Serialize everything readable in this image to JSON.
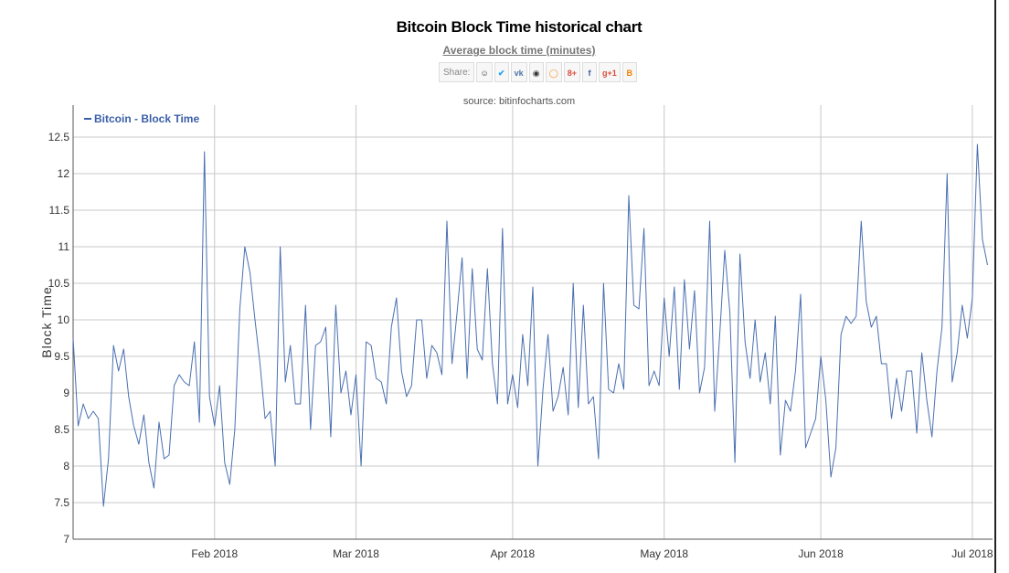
{
  "header": {
    "title": "Bitcoin Block Time historical chart",
    "subtitle": "Average block time (minutes)",
    "source": "source: bitinfocharts.com",
    "share_label": "Share:",
    "share_icons": [
      "reddit-icon",
      "twitter-icon",
      "vk-icon",
      "weibo-icon",
      "odnoklassniki-icon",
      "google-plus-icon",
      "facebook-icon",
      "google-plus-one-icon",
      "blogger-icon"
    ]
  },
  "colors": {
    "line": "#4a6fb0",
    "grid": "#c8c8c8",
    "axis": "#555555",
    "legend": "#3a5fa8"
  },
  "chart_data": {
    "type": "line",
    "title": "Bitcoin Block Time historical chart",
    "subtitle": "Average block time (minutes)",
    "ylabel": "Block Time",
    "xlabel": "",
    "ylim": [
      7,
      12.5
    ],
    "yticks": [
      "7",
      "7.5",
      "8",
      "8.5",
      "9",
      "9.5",
      "10",
      "10.5",
      "11",
      "11.5",
      "12",
      "12.5"
    ],
    "x_range": [
      "2018-01-04",
      "2018-07-05"
    ],
    "xticks": [
      {
        "label": "Feb 2018",
        "date": "2018-02-01"
      },
      {
        "label": "Mar 2018",
        "date": "2018-03-01"
      },
      {
        "label": "Apr 2018",
        "date": "2018-04-01"
      },
      {
        "label": "May 2018",
        "date": "2018-05-01"
      },
      {
        "label": "Jun 2018",
        "date": "2018-06-01"
      },
      {
        "label": "Jul 2018",
        "date": "2018-07-01"
      }
    ],
    "grid": true,
    "legend": "top-left",
    "series": [
      {
        "name": "Bitcoin - Block Time",
        "points": [
          [
            "2018-01-04",
            9.75
          ],
          [
            "2018-01-05",
            8.55
          ],
          [
            "2018-01-06",
            8.85
          ],
          [
            "2018-01-07",
            8.65
          ],
          [
            "2018-01-08",
            8.75
          ],
          [
            "2018-01-09",
            8.65
          ],
          [
            "2018-01-10",
            7.45
          ],
          [
            "2018-01-11",
            8.1
          ],
          [
            "2018-01-12",
            9.65
          ],
          [
            "2018-01-13",
            9.3
          ],
          [
            "2018-01-14",
            9.6
          ],
          [
            "2018-01-15",
            8.95
          ],
          [
            "2018-01-16",
            8.55
          ],
          [
            "2018-01-17",
            8.3
          ],
          [
            "2018-01-18",
            8.7
          ],
          [
            "2018-01-19",
            8.05
          ],
          [
            "2018-01-20",
            7.7
          ],
          [
            "2018-01-21",
            8.6
          ],
          [
            "2018-01-22",
            8.1
          ],
          [
            "2018-01-23",
            8.15
          ],
          [
            "2018-01-24",
            9.1
          ],
          [
            "2018-01-25",
            9.25
          ],
          [
            "2018-01-26",
            9.15
          ],
          [
            "2018-01-27",
            9.1
          ],
          [
            "2018-01-28",
            9.7
          ],
          [
            "2018-01-29",
            8.6
          ],
          [
            "2018-01-30",
            12.3
          ],
          [
            "2018-01-31",
            8.95
          ],
          [
            "2018-02-01",
            8.55
          ],
          [
            "2018-02-02",
            9.1
          ],
          [
            "2018-02-03",
            8.05
          ],
          [
            "2018-02-04",
            7.75
          ],
          [
            "2018-02-05",
            8.5
          ],
          [
            "2018-02-06",
            10.15
          ],
          [
            "2018-02-07",
            11.0
          ],
          [
            "2018-02-08",
            10.65
          ],
          [
            "2018-02-09",
            10.0
          ],
          [
            "2018-02-10",
            9.4
          ],
          [
            "2018-02-11",
            8.65
          ],
          [
            "2018-02-12",
            8.75
          ],
          [
            "2018-02-13",
            8.0
          ],
          [
            "2018-02-14",
            11.0
          ],
          [
            "2018-02-15",
            9.15
          ],
          [
            "2018-02-16",
            9.65
          ],
          [
            "2018-02-17",
            8.85
          ],
          [
            "2018-02-18",
            8.85
          ],
          [
            "2018-02-19",
            10.2
          ],
          [
            "2018-02-20",
            8.5
          ],
          [
            "2018-02-21",
            9.65
          ],
          [
            "2018-02-22",
            9.7
          ],
          [
            "2018-02-23",
            9.9
          ],
          [
            "2018-02-24",
            8.4
          ],
          [
            "2018-02-25",
            10.2
          ],
          [
            "2018-02-26",
            9.0
          ],
          [
            "2018-02-27",
            9.3
          ],
          [
            "2018-02-28",
            8.7
          ],
          [
            "2018-03-01",
            9.25
          ],
          [
            "2018-03-02",
            8.0
          ],
          [
            "2018-03-03",
            9.7
          ],
          [
            "2018-03-04",
            9.65
          ],
          [
            "2018-03-05",
            9.2
          ],
          [
            "2018-03-06",
            9.15
          ],
          [
            "2018-03-07",
            8.85
          ],
          [
            "2018-03-08",
            9.9
          ],
          [
            "2018-03-09",
            10.3
          ],
          [
            "2018-03-10",
            9.3
          ],
          [
            "2018-03-11",
            8.95
          ],
          [
            "2018-03-12",
            9.1
          ],
          [
            "2018-03-13",
            10.0
          ],
          [
            "2018-03-14",
            10.0
          ],
          [
            "2018-03-15",
            9.2
          ],
          [
            "2018-03-16",
            9.65
          ],
          [
            "2018-03-17",
            9.55
          ],
          [
            "2018-03-18",
            9.25
          ],
          [
            "2018-03-19",
            11.35
          ],
          [
            "2018-03-20",
            9.4
          ],
          [
            "2018-03-21",
            10.1
          ],
          [
            "2018-03-22",
            10.85
          ],
          [
            "2018-03-23",
            9.2
          ],
          [
            "2018-03-24",
            10.7
          ],
          [
            "2018-03-25",
            9.6
          ],
          [
            "2018-03-26",
            9.45
          ],
          [
            "2018-03-27",
            10.7
          ],
          [
            "2018-03-28",
            9.4
          ],
          [
            "2018-03-29",
            8.85
          ],
          [
            "2018-03-30",
            11.25
          ],
          [
            "2018-03-31",
            8.85
          ],
          [
            "2018-04-01",
            9.25
          ],
          [
            "2018-04-02",
            8.8
          ],
          [
            "2018-04-03",
            9.8
          ],
          [
            "2018-04-04",
            9.1
          ],
          [
            "2018-04-05",
            10.45
          ],
          [
            "2018-04-06",
            8.0
          ],
          [
            "2018-04-07",
            9.05
          ],
          [
            "2018-04-08",
            9.8
          ],
          [
            "2018-04-09",
            8.75
          ],
          [
            "2018-04-10",
            8.95
          ],
          [
            "2018-04-11",
            9.35
          ],
          [
            "2018-04-12",
            8.7
          ],
          [
            "2018-04-13",
            10.5
          ],
          [
            "2018-04-14",
            8.8
          ],
          [
            "2018-04-15",
            10.2
          ],
          [
            "2018-04-16",
            8.85
          ],
          [
            "2018-04-17",
            8.95
          ],
          [
            "2018-04-18",
            8.1
          ],
          [
            "2018-04-19",
            10.5
          ],
          [
            "2018-04-20",
            9.05
          ],
          [
            "2018-04-21",
            9.0
          ],
          [
            "2018-04-22",
            9.4
          ],
          [
            "2018-04-23",
            9.05
          ],
          [
            "2018-04-24",
            11.7
          ],
          [
            "2018-04-25",
            10.2
          ],
          [
            "2018-04-26",
            10.15
          ],
          [
            "2018-04-27",
            11.25
          ],
          [
            "2018-04-28",
            9.1
          ],
          [
            "2018-04-29",
            9.3
          ],
          [
            "2018-04-30",
            9.1
          ],
          [
            "2018-05-01",
            10.3
          ],
          [
            "2018-05-02",
            9.5
          ],
          [
            "2018-05-03",
            10.45
          ],
          [
            "2018-05-04",
            9.05
          ],
          [
            "2018-05-05",
            10.55
          ],
          [
            "2018-05-06",
            9.6
          ],
          [
            "2018-05-07",
            10.4
          ],
          [
            "2018-05-08",
            9.0
          ],
          [
            "2018-05-09",
            9.35
          ],
          [
            "2018-05-10",
            11.35
          ],
          [
            "2018-05-11",
            8.75
          ],
          [
            "2018-05-12",
            9.8
          ],
          [
            "2018-05-13",
            10.95
          ],
          [
            "2018-05-14",
            10.1
          ],
          [
            "2018-05-15",
            8.05
          ],
          [
            "2018-05-16",
            10.9
          ],
          [
            "2018-05-17",
            9.7
          ],
          [
            "2018-05-18",
            9.2
          ],
          [
            "2018-05-19",
            10.0
          ],
          [
            "2018-05-20",
            9.15
          ],
          [
            "2018-05-21",
            9.55
          ],
          [
            "2018-05-22",
            8.85
          ],
          [
            "2018-05-23",
            10.05
          ],
          [
            "2018-05-24",
            8.15
          ],
          [
            "2018-05-25",
            8.9
          ],
          [
            "2018-05-26",
            8.75
          ],
          [
            "2018-05-27",
            9.3
          ],
          [
            "2018-05-28",
            10.35
          ],
          [
            "2018-05-29",
            8.25
          ],
          [
            "2018-05-30",
            8.45
          ],
          [
            "2018-05-31",
            8.65
          ],
          [
            "2018-06-01",
            9.5
          ],
          [
            "2018-06-02",
            8.9
          ],
          [
            "2018-06-03",
            7.85
          ],
          [
            "2018-06-04",
            8.25
          ],
          [
            "2018-06-05",
            9.8
          ],
          [
            "2018-06-06",
            10.05
          ],
          [
            "2018-06-07",
            9.95
          ],
          [
            "2018-06-08",
            10.05
          ],
          [
            "2018-06-09",
            11.35
          ],
          [
            "2018-06-10",
            10.25
          ],
          [
            "2018-06-11",
            9.9
          ],
          [
            "2018-06-12",
            10.05
          ],
          [
            "2018-06-13",
            9.4
          ],
          [
            "2018-06-14",
            9.4
          ],
          [
            "2018-06-15",
            8.65
          ],
          [
            "2018-06-16",
            9.2
          ],
          [
            "2018-06-17",
            8.75
          ],
          [
            "2018-06-18",
            9.3
          ],
          [
            "2018-06-19",
            9.3
          ],
          [
            "2018-06-20",
            8.45
          ],
          [
            "2018-06-21",
            9.55
          ],
          [
            "2018-06-22",
            8.9
          ],
          [
            "2018-06-23",
            8.4
          ],
          [
            "2018-06-24",
            9.3
          ],
          [
            "2018-06-25",
            9.9
          ],
          [
            "2018-06-26",
            12.0
          ],
          [
            "2018-06-27",
            9.15
          ],
          [
            "2018-06-28",
            9.55
          ],
          [
            "2018-06-29",
            10.2
          ],
          [
            "2018-06-30",
            9.75
          ],
          [
            "2018-07-01",
            10.3
          ],
          [
            "2018-07-02",
            12.4
          ],
          [
            "2018-07-03",
            11.1
          ],
          [
            "2018-07-04",
            10.75
          ]
        ]
      }
    ]
  }
}
